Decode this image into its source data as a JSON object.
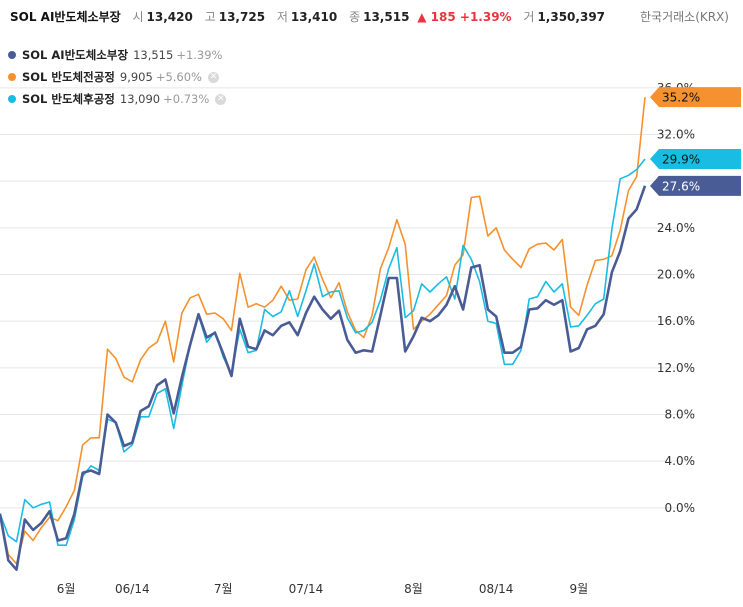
{
  "header": {
    "name": "SOL AI반도체소부장",
    "open_label": "시",
    "open": "13,420",
    "high_label": "고",
    "high": "13,725",
    "low_label": "저",
    "low": "13,410",
    "close_label": "종",
    "close": "13,515",
    "change": "▲ 185 +1.39%",
    "volume_label": "거",
    "volume": "1,350,397",
    "source": "한국거래소(KRX)"
  },
  "legend": [
    {
      "name": "SOL AI반도체소부장",
      "value": "13,515",
      "change": "+1.39%",
      "color": "#4a5c96",
      "removable": false
    },
    {
      "name": "SOL 반도체전공정",
      "value": "9,905",
      "change": "+5.60%",
      "color": "#f5912e",
      "removable": true
    },
    {
      "name": "SOL 반도체후공정",
      "value": "13,090",
      "change": "+0.73%",
      "color": "#19bde3",
      "removable": true
    }
  ],
  "chart_data": {
    "type": "line",
    "ylim": [
      -5.5,
      36.5
    ],
    "yticks": [
      "36.0%",
      "32.0%",
      "28.0%",
      "24.0%",
      "20.0%",
      "16.0%",
      "12.0%",
      "8.0%",
      "4.0%",
      "0.0%"
    ],
    "ytick_values": [
      36,
      32,
      28,
      24,
      20,
      16,
      12,
      8,
      4,
      0
    ],
    "xticks": [
      "6월",
      "06/14",
      "7월",
      "07/14",
      "8월",
      "08/14",
      "9월"
    ],
    "xtick_index": [
      8,
      16,
      27,
      37,
      50,
      60,
      70
    ],
    "grid": "horizontal",
    "series": [
      {
        "name": "SOL AI반도체소부장",
        "color": "#4a5c96",
        "end_label": "27.6%",
        "values": [
          -0.5,
          -4.5,
          -5.3,
          -1.0,
          -1.9,
          -1.3,
          -0.3,
          -2.8,
          -2.6,
          -0.5,
          3.0,
          3.2,
          2.9,
          8.0,
          7.3,
          5.3,
          5.6,
          8.3,
          8.7,
          10.5,
          11.0,
          8.1,
          11.2,
          14.0,
          16.6,
          14.6,
          15.0,
          13.2,
          11.3,
          16.2,
          13.8,
          13.6,
          15.2,
          14.8,
          15.6,
          15.9,
          14.8,
          16.7,
          18.1,
          17.0,
          16.2,
          16.9,
          14.4,
          13.3,
          13.5,
          13.4,
          16.5,
          19.7,
          19.7,
          13.4,
          14.7,
          16.3,
          16.0,
          16.5,
          17.4,
          19.0,
          17.0,
          20.6,
          20.8,
          17.0,
          16.4,
          13.3,
          13.3,
          13.8,
          17.0,
          17.1,
          17.8,
          17.4,
          17.8,
          13.4,
          13.7,
          15.3,
          15.6,
          16.6,
          20.2,
          22.0,
          24.8,
          25.6,
          27.6
        ]
      },
      {
        "name": "SOL 반도체전공정",
        "color": "#f5912e",
        "end_label": "35.2%",
        "values": [
          -0.5,
          -4.0,
          -4.8,
          -2.0,
          -2.8,
          -1.7,
          -0.8,
          -1.1,
          0.1,
          1.5,
          5.4,
          6.0,
          6.0,
          13.6,
          12.8,
          11.2,
          10.8,
          12.7,
          13.7,
          14.2,
          16.0,
          12.5,
          16.7,
          18.0,
          18.3,
          16.6,
          16.7,
          16.2,
          15.2,
          20.1,
          17.2,
          17.5,
          17.2,
          17.8,
          19.0,
          17.8,
          17.9,
          20.4,
          21.5,
          19.6,
          18.0,
          19.3,
          16.8,
          15.2,
          14.6,
          16.5,
          20.5,
          22.3,
          24.7,
          22.6,
          15.3,
          16.0,
          16.6,
          17.4,
          18.2,
          20.8,
          21.7,
          26.6,
          26.7,
          23.3,
          24.0,
          22.1,
          21.3,
          20.6,
          22.2,
          22.6,
          22.7,
          22.1,
          23.0,
          17.2,
          16.5,
          19.1,
          21.2,
          21.3,
          21.6,
          23.8,
          27.2,
          28.4,
          35.2
        ]
      },
      {
        "name": "SOL 반도체후공정",
        "color": "#19bde3",
        "end_label": "29.9%",
        "values": [
          -0.5,
          -2.4,
          -2.9,
          0.7,
          0.0,
          0.3,
          0.5,
          -3.2,
          -3.2,
          -1.0,
          2.7,
          3.6,
          3.2,
          7.6,
          7.3,
          4.8,
          5.4,
          7.8,
          7.8,
          9.8,
          10.2,
          6.8,
          10.5,
          14.0,
          16.5,
          14.2,
          15.1,
          12.9,
          11.5,
          15.3,
          13.3,
          13.5,
          17.0,
          16.4,
          16.8,
          18.6,
          16.4,
          18.6,
          20.9,
          18.1,
          18.5,
          18.6,
          16.3,
          15.0,
          15.2,
          15.9,
          17.8,
          20.5,
          22.3,
          16.3,
          16.9,
          19.2,
          18.5,
          19.2,
          19.8,
          17.9,
          22.5,
          21.3,
          19.4,
          16.0,
          15.8,
          12.3,
          12.3,
          13.5,
          17.9,
          18.1,
          19.4,
          18.5,
          19.2,
          15.5,
          15.6,
          16.5,
          17.5,
          17.9,
          23.9,
          28.2,
          28.5,
          29.0,
          29.9
        ]
      }
    ]
  }
}
